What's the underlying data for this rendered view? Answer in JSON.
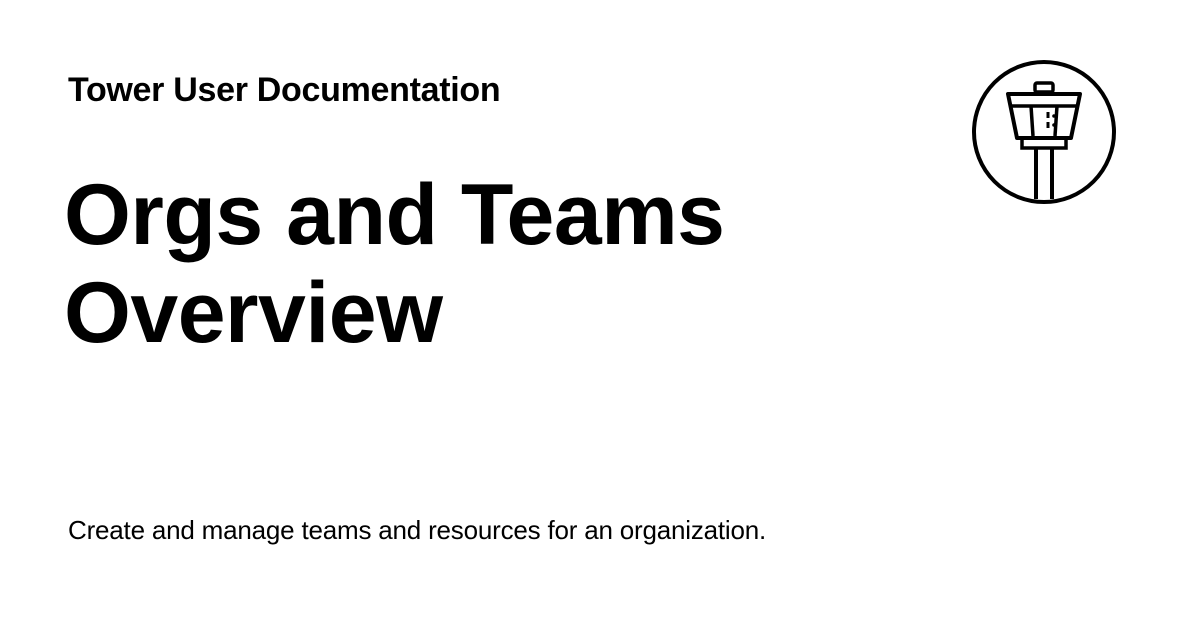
{
  "header": {
    "site_title": "Tower User Documentation"
  },
  "main": {
    "title_lines": [
      "Orgs and Teams",
      "Overview"
    ],
    "description": "Create and manage teams and resources for an organization."
  },
  "logo": {
    "icon": "control-tower-icon"
  },
  "colors": {
    "background": "#ffffff",
    "text": "#000000"
  }
}
